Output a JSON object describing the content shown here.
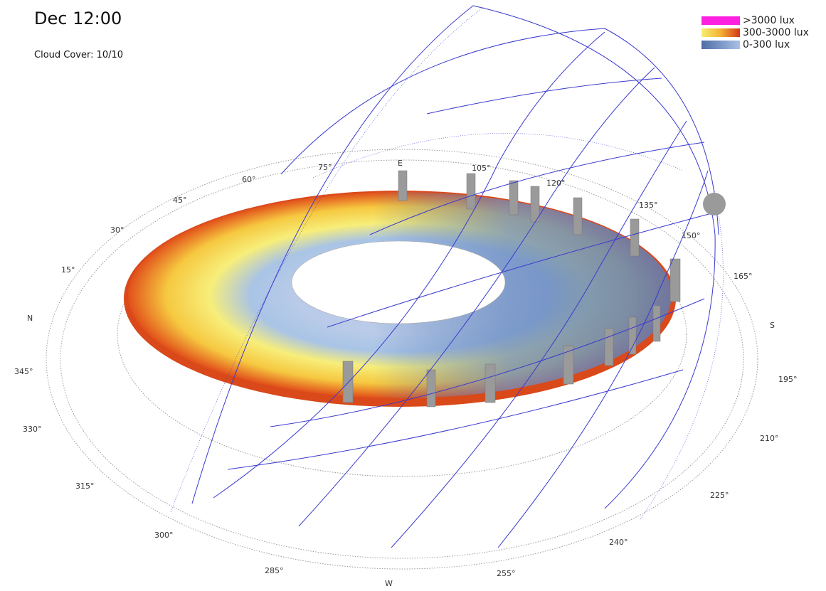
{
  "header": {
    "title": "Dec 12:00",
    "subtitle": "Cloud Cover: 10/10"
  },
  "legend": [
    {
      "label": ">3000 lux"
    },
    {
      "label": "300-3000 lux"
    },
    {
      "label": "0-300 lux"
    }
  ],
  "compass": {
    "labels": [
      "N",
      "15°",
      "30°",
      "45°",
      "60°",
      "75°",
      "E",
      "105°",
      "120°",
      "135°",
      "150°",
      "165°",
      "S",
      "195°",
      "210°",
      "225°",
      "240°",
      "255°",
      "W",
      "285°",
      "300°",
      "315°",
      "330°",
      "345°"
    ]
  }
}
